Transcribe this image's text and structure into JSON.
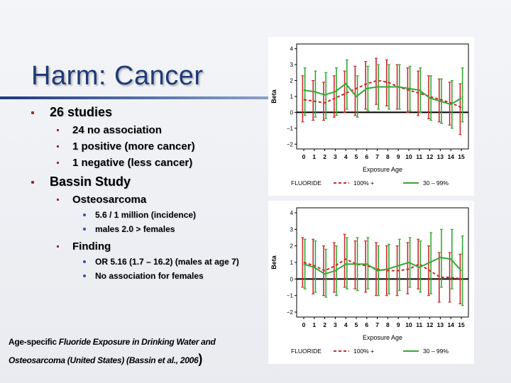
{
  "slide": {
    "title": "Harm: Cancer",
    "bullets": {
      "studies": {
        "label": "26 studies",
        "items": [
          "24 no association",
          "1 positive (more cancer)",
          "1 negative (less cancer)"
        ]
      },
      "bassin": {
        "label": "Bassin Study",
        "osteo": {
          "label": "Osteosarcoma",
          "items": [
            "5.6 / 1 million (incidence)",
            "males 2.0 > females"
          ]
        },
        "finding": {
          "label": "Finding",
          "items": [
            "OR 5.16 (1.7 – 16.2) (males at age 7)",
            "No association for females"
          ]
        }
      }
    },
    "citation": {
      "prefix": "Age-specific ",
      "italic_part": "Fluoride Exposure in Drinking Water and Osteosarcoma (United States) (Bassin et al., 2006",
      "suffix": ")"
    },
    "colors": {
      "title": "#1f3a78",
      "series_100": "#cc2a2a",
      "series_30": "#33a833",
      "bullet": "#9a2b2b"
    }
  },
  "chart_data": [
    {
      "type": "line",
      "title": "",
      "xlabel": "Exposure Age",
      "ylabel": "Beta",
      "x": [
        0,
        1,
        2,
        3,
        4,
        5,
        6,
        7,
        8,
        9,
        10,
        11,
        12,
        13,
        14,
        15
      ],
      "ylim": [
        -2.3,
        4.3
      ],
      "yticks": [
        -2,
        -1,
        0,
        1,
        2,
        3,
        4
      ],
      "ytick_labels": [
        "−2",
        "−1",
        "0",
        "1",
        "2",
        "3",
        "4"
      ],
      "legend": {
        "title": "FLUORIDE",
        "placement": "bottom"
      },
      "series": [
        {
          "name": "100% +",
          "style": "dashed",
          "color": "#cc2a2a",
          "values": [
            0.8,
            0.7,
            0.6,
            0.9,
            1.2,
            1.5,
            1.8,
            2.0,
            1.9,
            1.6,
            1.4,
            1.2,
            1.0,
            0.8,
            0.6,
            0.3
          ],
          "lower": [
            -0.6,
            -0.5,
            -0.5,
            -0.3,
            0.0,
            -0.2,
            0.2,
            0.5,
            0.4,
            0.2,
            0.0,
            -0.2,
            -0.4,
            -0.6,
            -0.8,
            -1.4
          ],
          "upper": [
            2.3,
            2.0,
            1.9,
            2.3,
            2.6,
            2.9,
            3.2,
            3.4,
            3.3,
            3.0,
            2.8,
            2.6,
            2.3,
            2.1,
            1.9,
            1.8
          ]
        },
        {
          "name": "30 – 99%",
          "style": "solid",
          "color": "#33a833",
          "values": [
            1.4,
            1.3,
            1.1,
            1.3,
            1.8,
            1.0,
            1.5,
            1.6,
            1.6,
            1.6,
            1.5,
            1.4,
            0.9,
            0.7,
            0.5,
            0.9
          ],
          "lower": [
            -0.2,
            -0.3,
            -0.4,
            -0.2,
            0.2,
            -0.3,
            0.1,
            0.2,
            0.2,
            0.2,
            0.1,
            0.0,
            -0.5,
            -0.7,
            -1.0,
            -0.6
          ],
          "upper": [
            2.8,
            2.6,
            2.5,
            2.8,
            3.3,
            2.3,
            2.9,
            3.0,
            3.0,
            3.0,
            2.9,
            2.8,
            2.3,
            2.1,
            2.0,
            2.8
          ]
        }
      ]
    },
    {
      "type": "line",
      "title": "",
      "xlabel": "Exposure Age",
      "ylabel": "Beta",
      "x": [
        0,
        1,
        2,
        3,
        4,
        5,
        6,
        7,
        8,
        9,
        10,
        11,
        12,
        13,
        14,
        15
      ],
      "ylim": [
        -2.3,
        4.3
      ],
      "yticks": [
        -2,
        -1,
        0,
        1,
        2,
        3,
        4
      ],
      "ytick_labels": [
        "−2",
        "−1",
        "0",
        "1",
        "2",
        "3",
        "4"
      ],
      "legend": {
        "title": "FLUORIDE",
        "placement": "bottom"
      },
      "series": [
        {
          "name": "100% +",
          "style": "dashed",
          "color": "#cc2a2a",
          "values": [
            1.0,
            0.8,
            0.5,
            0.8,
            1.2,
            0.9,
            0.8,
            0.6,
            0.5,
            0.5,
            0.6,
            0.9,
            0.5,
            0.1,
            0.1,
            0.0
          ],
          "lower": [
            -0.5,
            -0.9,
            -1.0,
            -0.8,
            -0.5,
            -0.6,
            -0.8,
            -1.0,
            -1.0,
            -1.0,
            -0.9,
            -0.6,
            -1.0,
            -1.4,
            -1.4,
            -1.5
          ],
          "upper": [
            2.5,
            2.4,
            2.0,
            2.2,
            2.7,
            2.3,
            2.3,
            2.2,
            2.0,
            2.0,
            2.2,
            2.4,
            2.0,
            1.6,
            1.6,
            1.5
          ]
        },
        {
          "name": "30 – 99%",
          "style": "solid",
          "color": "#33a833",
          "values": [
            0.9,
            0.7,
            0.3,
            0.5,
            0.9,
            0.9,
            0.9,
            0.5,
            0.6,
            0.8,
            1.0,
            0.7,
            1.0,
            1.3,
            1.2,
            0.5
          ],
          "lower": [
            -0.6,
            -0.8,
            -1.1,
            -1.0,
            -0.6,
            -0.7,
            -0.6,
            -1.0,
            -0.9,
            -0.7,
            -0.5,
            -0.8,
            -0.9,
            -0.5,
            -0.6,
            -1.6
          ],
          "upper": [
            2.4,
            2.3,
            1.8,
            2.0,
            2.5,
            2.5,
            2.5,
            2.0,
            2.1,
            2.4,
            2.5,
            2.3,
            2.8,
            3.0,
            3.0,
            2.6
          ]
        }
      ]
    }
  ]
}
